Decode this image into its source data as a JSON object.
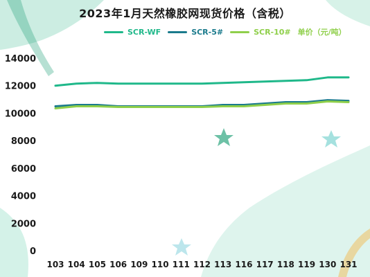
{
  "chart_data": {
    "type": "line",
    "title": "2023年1月天然橡胶网现货价格（含税）",
    "unit_label": "单价（元/吨）",
    "categories": [
      "103",
      "104",
      "105",
      "106",
      "109",
      "110",
      "111",
      "112",
      "113",
      "116",
      "117",
      "118",
      "119",
      "130",
      "131"
    ],
    "series": [
      {
        "name": "SCR-WF",
        "color": "#1fb88a",
        "values": [
          12000,
          12150,
          12200,
          12150,
          12150,
          12150,
          12150,
          12150,
          12200,
          12250,
          12300,
          12350,
          12400,
          12600,
          12600
        ]
      },
      {
        "name": "SCR-5#",
        "color": "#1a7a8c",
        "values": [
          10500,
          10600,
          10600,
          10500,
          10500,
          10500,
          10500,
          10500,
          10600,
          10600,
          10700,
          10800,
          10800,
          10950,
          10900
        ]
      },
      {
        "name": "SCR-10#",
        "color": "#8fcf4a",
        "values": [
          10350,
          10500,
          10500,
          10450,
          10450,
          10450,
          10450,
          10450,
          10500,
          10500,
          10600,
          10700,
          10700,
          10850,
          10800
        ]
      }
    ],
    "yticks": [
      0,
      2000,
      4000,
      6000,
      8000,
      10000,
      12000,
      14000
    ],
    "ylim": [
      0,
      14000
    ],
    "grid": false,
    "legend": "top"
  }
}
